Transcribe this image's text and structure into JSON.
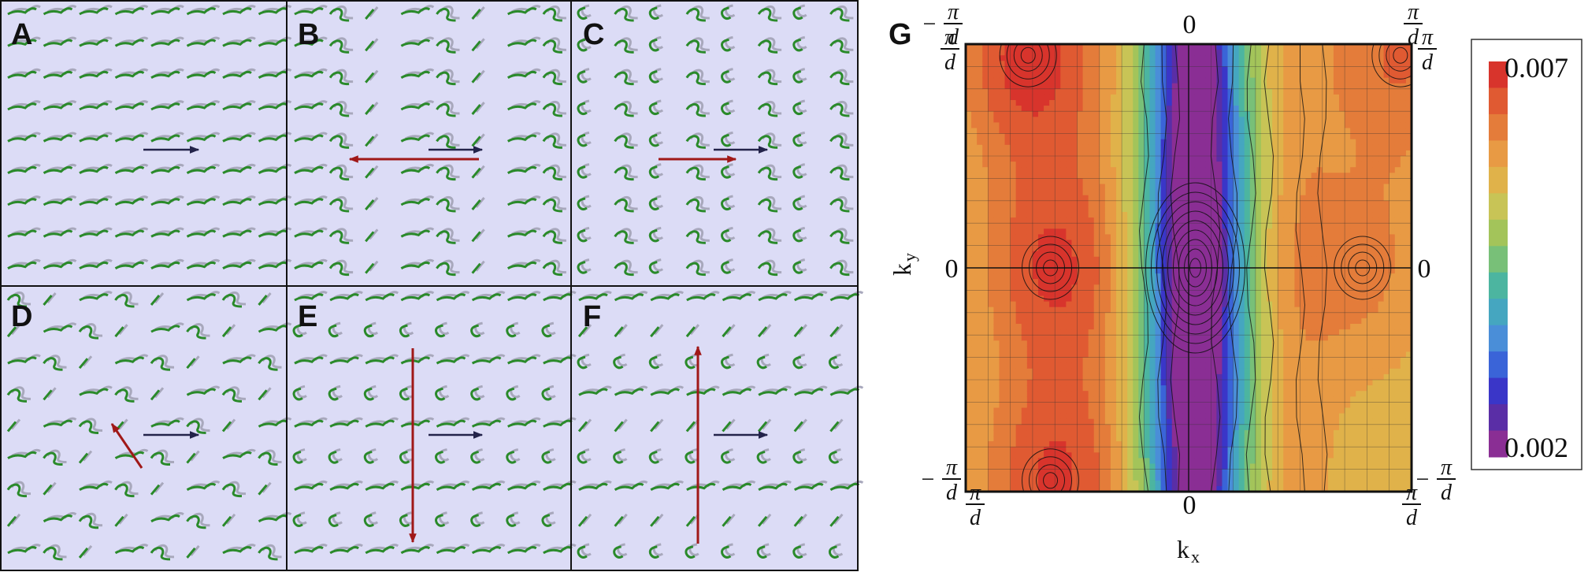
{
  "panel_labels": [
    "A",
    "B",
    "C",
    "D",
    "E",
    "F",
    "G"
  ],
  "chart_data": {
    "type": "heatmap",
    "title": "",
    "xlabel": "k",
    "xlabel_sub": "x",
    "ylabel": "k",
    "ylabel_sub": "y",
    "xlim": [
      "-π/d",
      "π/d"
    ],
    "ylim": [
      "-π/d",
      "π/d"
    ],
    "x_ticks": [
      {
        "value": "-π/d",
        "sign": "",
        "num": "π",
        "den": "d"
      },
      {
        "value": "0",
        "label": "0"
      },
      {
        "value": "π/d",
        "sign": "",
        "num": "π",
        "den": "d"
      }
    ],
    "top_ticks": [
      {
        "value": "-π/d",
        "sign": "−",
        "num": "π",
        "den": "d"
      },
      {
        "value": "0",
        "label": "0"
      },
      {
        "value": "π/d",
        "sign": "",
        "num": "π",
        "den": "d"
      }
    ],
    "left_ticks": [
      {
        "value": "π/d",
        "sign": "",
        "num": "π",
        "den": "d"
      },
      {
        "value": "0",
        "label": "0"
      },
      {
        "value": "-π/d",
        "sign": "−",
        "num": "π",
        "den": "d"
      }
    ],
    "right_ticks": [
      {
        "value": "π/d",
        "sign": "",
        "num": "π",
        "den": "d"
      },
      {
        "value": "0",
        "label": "0"
      },
      {
        "value": "-π/d",
        "sign": "−",
        "num": "π",
        "den": "d"
      }
    ],
    "colorbar": {
      "min": 0.002,
      "max": 0.007,
      "max_label": "0.007",
      "min_label": "0.002",
      "colors": [
        "#8a2e94",
        "#5a2ea6",
        "#3a36c8",
        "#3a64d8",
        "#4a8ed8",
        "#45a6c0",
        "#4cb5a0",
        "#78c078",
        "#a3c45a",
        "#c8c456",
        "#e0b24a",
        "#e89a44",
        "#e47c3a",
        "#e05a32",
        "#d8342c"
      ]
    },
    "field_extrema": [
      {
        "kx": 0.03,
        "ky": 0.0,
        "value": 0.002,
        "kind": "minimum"
      },
      {
        "kx": -0.62,
        "ky": 0.0,
        "value": 0.0068,
        "kind": "maximum"
      },
      {
        "kx": -0.72,
        "ky": 0.95,
        "value": 0.007,
        "kind": "maximum"
      },
      {
        "kx": -0.62,
        "ky": -0.95,
        "value": 0.0068,
        "kind": "maximum"
      },
      {
        "kx": 0.78,
        "ky": 0.0,
        "value": 0.0062,
        "kind": "local maximum"
      },
      {
        "kx": 0.95,
        "ky": 0.95,
        "value": 0.0065,
        "kind": "maximum"
      }
    ],
    "grid": true,
    "legend_position": "right"
  }
}
